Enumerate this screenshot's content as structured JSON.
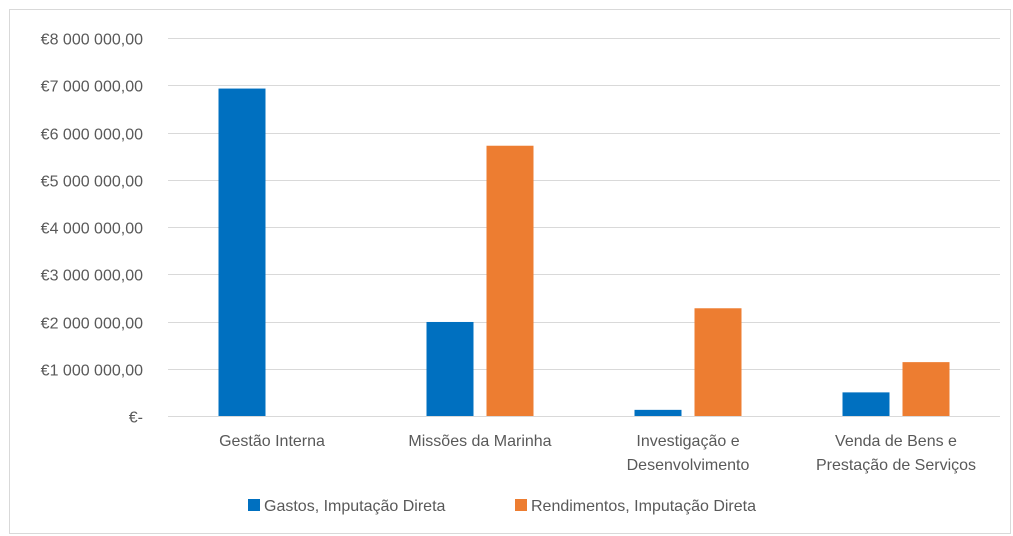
{
  "chart_data": {
    "type": "bar",
    "title": "",
    "xlabel": "",
    "ylabel": "",
    "categories": [
      [
        "Gestão Interna"
      ],
      [
        "Missões da Marinha"
      ],
      [
        "Investigação e",
        "Desenvolvimento"
      ],
      [
        "Venda de Bens e",
        "Prestação de Serviços"
      ]
    ],
    "series": [
      {
        "name": "Gastos, Imputação Direta",
        "color": "#0070c0",
        "values": [
          6930000,
          1990000,
          130000,
          500000
        ]
      },
      {
        "name": "Rendimentos, Imputação Direta",
        "color": "#ed7d31",
        "values": [
          0,
          5720000,
          2280000,
          1140000
        ]
      }
    ],
    "ylim": [
      0,
      8000000
    ],
    "yticks": [
      {
        "value": 0,
        "label": "€-"
      },
      {
        "value": 1000000,
        "label": "€1 000 000,00"
      },
      {
        "value": 2000000,
        "label": "€2 000 000,00"
      },
      {
        "value": 3000000,
        "label": "€3 000 000,00"
      },
      {
        "value": 4000000,
        "label": "€4 000 000,00"
      },
      {
        "value": 5000000,
        "label": "€5 000 000,00"
      },
      {
        "value": 6000000,
        "label": "€6 000 000,00"
      },
      {
        "value": 7000000,
        "label": "€7 000 000,00"
      },
      {
        "value": 8000000,
        "label": "€8 000 000,00"
      }
    ],
    "grid": true,
    "legend_position": "bottom",
    "gridline_color": "#d9d9d9"
  }
}
